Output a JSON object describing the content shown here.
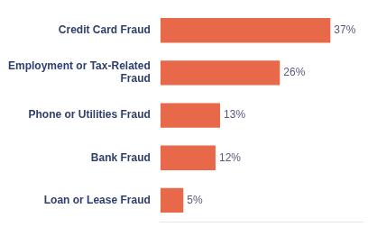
{
  "chart_data": {
    "type": "bar",
    "orientation": "horizontal",
    "categories": [
      "Loan or Lease Fraud",
      "Bank Fraud",
      "Phone or Utilities Fraud",
      "Employment or Tax-Related\nFraud",
      "Credit Card Fraud"
    ],
    "values": [
      5,
      12,
      13,
      26,
      37
    ],
    "value_labels": [
      "5%",
      "12%",
      "13%",
      "26%",
      "37%"
    ],
    "color": "#E8694A",
    "xlim": [
      0,
      44
    ],
    "data_labels": true,
    "tick_labels": "y",
    "grid": false
  }
}
